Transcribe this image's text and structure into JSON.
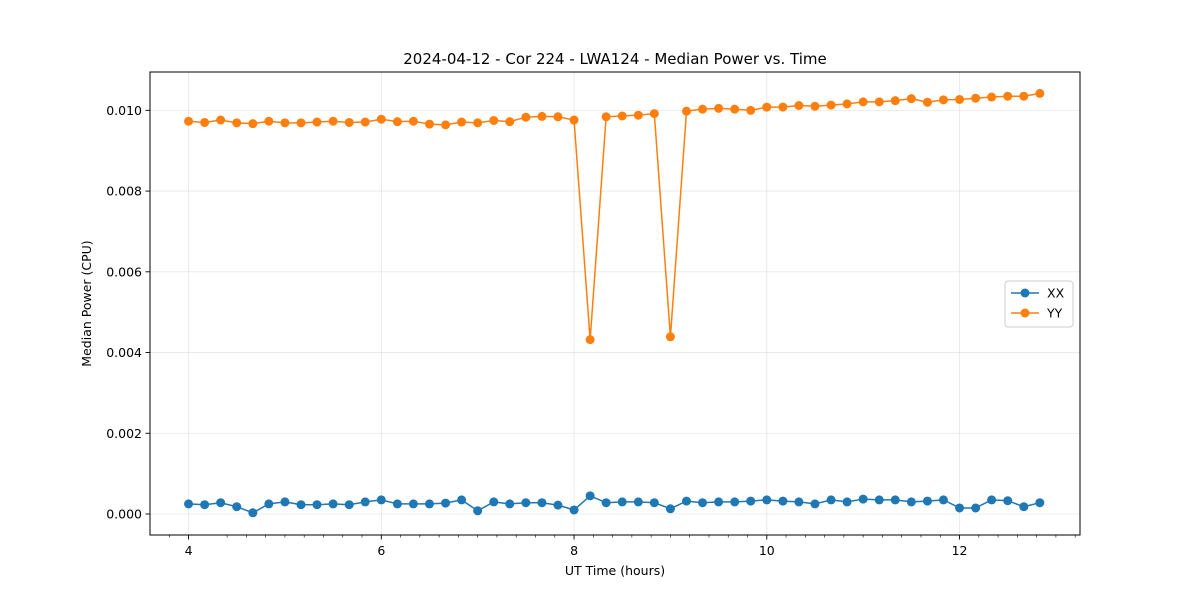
{
  "chart_data": {
    "type": "line",
    "title": "2024-04-12 - Cor 224 - LWA124 - Median Power vs. Time",
    "xlabel": "UT Time (hours)",
    "ylabel": "Median Power (CPU)",
    "xlim": [
      3.6,
      13.25
    ],
    "ylim": [
      -0.00052,
      0.01095
    ],
    "x_ticks": [
      4,
      6,
      8,
      10,
      12
    ],
    "x_tick_labels": [
      "4",
      "6",
      "8",
      "10",
      "12"
    ],
    "x_minor_ticks": [
      3.8,
      4.4,
      4.6,
      4.8,
      5.0,
      5.2,
      5.4,
      5.6,
      5.8,
      6.2,
      6.4,
      6.6,
      6.8,
      7.0,
      7.2,
      7.4,
      7.6,
      7.8,
      8.2,
      8.4,
      8.6,
      8.8,
      9.0,
      9.2,
      9.4,
      9.6,
      9.8,
      10.2,
      10.4,
      10.6,
      10.8,
      11.0,
      11.2,
      11.4,
      11.6,
      11.8,
      12.2,
      12.4,
      12.6,
      12.8,
      13.0,
      13.2
    ],
    "y_ticks": [
      0.0,
      0.002,
      0.004,
      0.006,
      0.008,
      0.01
    ],
    "y_tick_labels": [
      "0.000",
      "0.002",
      "0.004",
      "0.006",
      "0.008",
      "0.010"
    ],
    "grid": true,
    "legend_position": "center-right",
    "x": [
      4.0,
      4.167,
      4.333,
      4.5,
      4.667,
      4.833,
      5.0,
      5.167,
      5.333,
      5.5,
      5.667,
      5.833,
      6.0,
      6.167,
      6.333,
      6.5,
      6.667,
      6.833,
      7.0,
      7.167,
      7.333,
      7.5,
      7.667,
      7.833,
      8.0,
      8.167,
      8.333,
      8.5,
      8.667,
      8.833,
      9.0,
      9.167,
      9.333,
      9.5,
      9.667,
      9.833,
      10.0,
      10.167,
      10.333,
      10.5,
      10.667,
      10.833,
      11.0,
      11.167,
      11.333,
      11.5,
      11.667,
      11.833,
      12.0,
      12.167,
      12.333,
      12.5,
      12.667,
      12.833
    ],
    "series": [
      {
        "name": "XX",
        "color": "#1f77b4",
        "values": [
          0.00025,
          0.00023,
          0.00028,
          0.00018,
          3e-05,
          0.00025,
          0.0003,
          0.00023,
          0.00023,
          0.00025,
          0.00023,
          0.0003,
          0.00035,
          0.00025,
          0.00025,
          0.00025,
          0.00027,
          0.00035,
          8e-05,
          0.0003,
          0.00025,
          0.00028,
          0.00028,
          0.00022,
          0.0001,
          0.00045,
          0.00028,
          0.0003,
          0.0003,
          0.00028,
          0.00013,
          0.00032,
          0.00028,
          0.0003,
          0.0003,
          0.00032,
          0.00035,
          0.00032,
          0.0003,
          0.00025,
          0.00035,
          0.0003,
          0.00037,
          0.00035,
          0.00035,
          0.0003,
          0.00032,
          0.00035,
          0.00015,
          0.00015,
          0.00035,
          0.00033,
          0.00018,
          0.00028
        ]
      },
      {
        "name": "YY",
        "color": "#ff7f0e",
        "values": [
          0.00973,
          0.0097,
          0.00976,
          0.00969,
          0.00967,
          0.00973,
          0.00969,
          0.00969,
          0.00971,
          0.00973,
          0.0097,
          0.00971,
          0.00978,
          0.00972,
          0.00973,
          0.00966,
          0.00964,
          0.00971,
          0.00969,
          0.00975,
          0.00972,
          0.00983,
          0.00985,
          0.00984,
          0.00976,
          0.00432,
          0.00984,
          0.00986,
          0.00988,
          0.00992,
          0.00439,
          0.00998,
          0.01003,
          0.01005,
          0.01003,
          0.01,
          0.01008,
          0.01008,
          0.01012,
          0.0101,
          0.01013,
          0.01016,
          0.01021,
          0.01021,
          0.01024,
          0.01029,
          0.0102,
          0.01026,
          0.01027,
          0.0103,
          0.01033,
          0.01035,
          0.01035,
          0.01042
        ]
      }
    ]
  }
}
